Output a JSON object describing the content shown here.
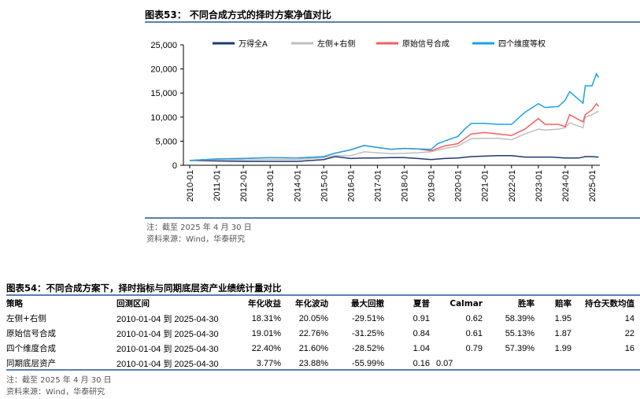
{
  "fig53": {
    "title": "图表53： 不同合成方式的择时方案净值对比",
    "note": "注：截至 2025 年 4 月 30 日",
    "source": "资料来源：Wind，华泰研究"
  },
  "chart_data": {
    "type": "line",
    "title": "",
    "xlabel": "",
    "ylabel": "",
    "ylim": [
      0,
      25000
    ],
    "yticks": [
      "0",
      "5,000",
      "10,000",
      "15,000",
      "20,000",
      "25,000"
    ],
    "xticks": [
      "2010-01",
      "2011-01",
      "2012-01",
      "2013-01",
      "2014-01",
      "2015-01",
      "2016-01",
      "2017-01",
      "2018-01",
      "2019-01",
      "2020-01",
      "2021-01",
      "2022-01",
      "2023-01",
      "2024-01",
      "2025-01"
    ],
    "grid": false,
    "legend": "top",
    "series": [
      {
        "name": "万得全A",
        "color": "#1f3a6e",
        "x": [
          "2010-01",
          "2011-01",
          "2012-01",
          "2013-01",
          "2014-01",
          "2015-01",
          "2015-06",
          "2016-01",
          "2016-07",
          "2017-01",
          "2017-07",
          "2018-01",
          "2018-07",
          "2019-01",
          "2019-07",
          "2020-01",
          "2020-07",
          "2021-01",
          "2021-07",
          "2022-01",
          "2022-07",
          "2023-01",
          "2023-07",
          "2024-01",
          "2024-07",
          "2024-10",
          "2025-01",
          "2025-04"
        ],
        "y": [
          1000,
          900,
          800,
          800,
          800,
          1200,
          1800,
          1400,
          1500,
          1500,
          1600,
          1600,
          1400,
          1200,
          1400,
          1500,
          1800,
          1900,
          2000,
          2000,
          1700,
          1700,
          1700,
          1500,
          1500,
          1800,
          1800,
          1700
        ]
      },
      {
        "name": "左侧+右侧",
        "color": "#bfbfbf",
        "x": [
          "2010-01",
          "2011-01",
          "2012-01",
          "2013-01",
          "2014-01",
          "2015-01",
          "2015-06",
          "2016-01",
          "2016-07",
          "2017-01",
          "2017-07",
          "2018-01",
          "2018-07",
          "2019-01",
          "2019-07",
          "2020-01",
          "2020-07",
          "2021-01",
          "2021-07",
          "2022-01",
          "2022-07",
          "2023-01",
          "2023-04",
          "2023-10",
          "2024-01",
          "2024-03",
          "2024-09",
          "2024-10",
          "2025-01",
          "2025-03",
          "2025-04"
        ],
        "y": [
          1000,
          1200,
          1100,
          1200,
          1200,
          1600,
          2000,
          2000,
          2800,
          2600,
          2400,
          2500,
          2600,
          2800,
          3500,
          4000,
          5500,
          5600,
          5600,
          5300,
          6500,
          7500,
          7300,
          7500,
          7800,
          8800,
          7800,
          10000,
          10500,
          11000,
          11200
        ]
      },
      {
        "name": "原始信号合成",
        "color": "#f4605f",
        "x": [
          "2010-01",
          "2011-01",
          "2012-01",
          "2013-01",
          "2014-01",
          "2015-01",
          "2015-06",
          "2016-01",
          "2016-07",
          "2017-01",
          "2017-07",
          "2018-01",
          "2018-07",
          "2019-01",
          "2019-07",
          "2020-01",
          "2020-07",
          "2021-01",
          "2021-07",
          "2022-01",
          "2022-07",
          "2023-01",
          "2023-04",
          "2023-10",
          "2024-01",
          "2024-03",
          "2024-09",
          "2024-10",
          "2025-01",
          "2025-03",
          "2025-04"
        ],
        "y": [
          1000,
          1300,
          1400,
          1600,
          1500,
          1800,
          2500,
          3200,
          4100,
          3700,
          3300,
          3500,
          3400,
          3000,
          4000,
          4500,
          6500,
          6800,
          6500,
          6200,
          7500,
          9700,
          8500,
          8500,
          8000,
          10500,
          9000,
          10500,
          11500,
          12800,
          12200
        ]
      },
      {
        "name": "四个维度等权",
        "color": "#1aa3e8",
        "x": [
          "2010-01",
          "2011-01",
          "2012-01",
          "2013-01",
          "2014-01",
          "2015-01",
          "2015-06",
          "2016-01",
          "2016-07",
          "2017-01",
          "2017-07",
          "2018-01",
          "2018-07",
          "2019-01",
          "2019-04",
          "2019-10",
          "2020-01",
          "2020-04",
          "2020-07",
          "2021-01",
          "2021-07",
          "2022-01",
          "2022-07",
          "2023-01",
          "2023-04",
          "2023-10",
          "2024-01",
          "2024-03",
          "2024-09",
          "2024-10",
          "2025-01",
          "2025-03",
          "2025-04"
        ],
        "y": [
          1000,
          1300,
          1400,
          1600,
          1500,
          1800,
          2500,
          3200,
          4100,
          3700,
          3300,
          3500,
          3400,
          3300,
          4500,
          5500,
          6000,
          7500,
          8700,
          8700,
          8500,
          8500,
          11000,
          12800,
          12000,
          12200,
          13500,
          15300,
          12900,
          16500,
          16500,
          19000,
          18200
        ]
      }
    ]
  },
  "fig54": {
    "title": "图表54：不同合成方案下，择时指标与同期底层资产业绩统计量对比",
    "headers": [
      "策略",
      "回测区间",
      "年化收益",
      "年化波动",
      "最大回撤",
      "夏普",
      "Calmar",
      "胜率",
      "赔率",
      "持仓天数均值"
    ],
    "rows": [
      [
        "左侧+右侧",
        "2010-01-04 到 2025-04-30",
        "18.31%",
        "20.05%",
        "-29.51%",
        "0.91",
        "0.62",
        "58.39%",
        "1.95",
        "14"
      ],
      [
        "原始信号合成",
        "2010-01-04 到 2025-04-30",
        "19.01%",
        "22.76%",
        "-31.25%",
        "0.84",
        "0.61",
        "55.13%",
        "1.87",
        "22"
      ],
      [
        "四个维度合成",
        "2010-01-04 到 2025-04-30",
        "22.40%",
        "21.60%",
        "-28.52%",
        "1.04",
        "0.79",
        "57.39%",
        "1.99",
        "16"
      ],
      [
        "同期底层资产",
        "2010-01-04 到 2025-04-30",
        "3.77%",
        "23.88%",
        "-55.99%",
        "0.16",
        "0.07",
        "",
        "",
        ""
      ]
    ],
    "note": "注：截至 2025 年 4 月 30 日",
    "source": "资料来源：Wind，华泰研究"
  }
}
